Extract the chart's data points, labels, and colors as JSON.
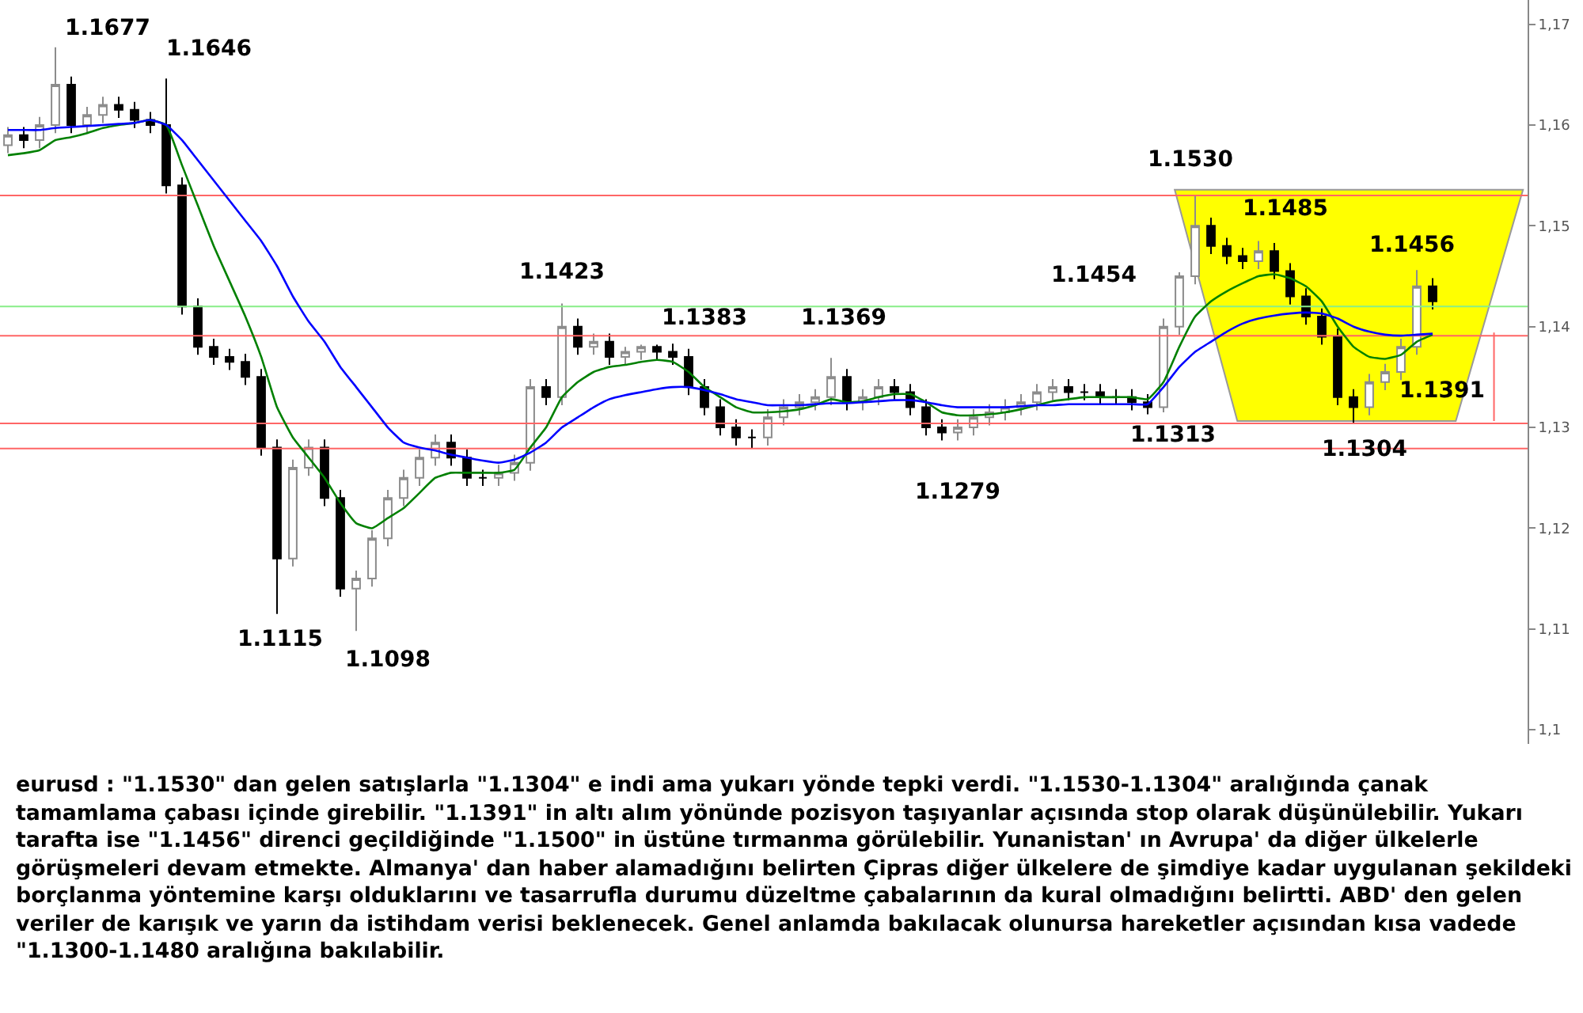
{
  "chart_data": {
    "type": "candlestick",
    "categories": [
      null,
      null,
      null,
      null,
      null,
      null,
      null,
      null,
      null,
      null,
      null,
      null,
      null,
      null,
      null,
      null,
      null,
      null,
      null,
      null,
      null,
      null,
      null,
      null,
      null,
      null,
      null,
      null,
      null,
      null,
      null,
      null,
      null,
      null,
      null,
      null,
      null,
      null,
      null,
      null,
      null,
      null,
      null,
      null,
      null,
      null,
      null,
      null,
      null,
      null,
      null,
      null,
      null,
      null,
      null,
      null,
      null,
      null,
      null,
      null,
      null,
      null,
      null,
      null,
      null,
      null,
      null,
      null,
      null,
      null,
      null,
      null,
      null,
      null,
      null,
      null,
      null,
      null,
      null,
      null,
      null,
      null,
      null,
      null,
      null,
      null,
      null,
      null,
      null,
      null,
      null
    ],
    "ohlc": [
      [
        1.158,
        1.1598,
        1.1572,
        1.159
      ],
      [
        1.159,
        1.1598,
        1.1577,
        1.1585
      ],
      [
        1.1585,
        1.1608,
        1.1577,
        1.16
      ],
      [
        1.16,
        1.1677,
        1.1592,
        1.164
      ],
      [
        1.164,
        1.1648,
        1.1592,
        1.16
      ],
      [
        1.16,
        1.1618,
        1.1592,
        1.161
      ],
      [
        1.161,
        1.1628,
        1.1602,
        1.162
      ],
      [
        1.162,
        1.1628,
        1.1607,
        1.1615
      ],
      [
        1.1615,
        1.1623,
        1.1597,
        1.1605
      ],
      [
        1.1605,
        1.1613,
        1.1592,
        1.16
      ],
      [
        1.16,
        1.1646,
        1.1532,
        1.154
      ],
      [
        1.154,
        1.1548,
        1.1412,
        1.142
      ],
      [
        1.142,
        1.1428,
        1.1372,
        1.138
      ],
      [
        1.138,
        1.1388,
        1.1362,
        1.137
      ],
      [
        1.137,
        1.1378,
        1.1357,
        1.1365
      ],
      [
        1.1365,
        1.1373,
        1.1342,
        1.135
      ],
      [
        1.135,
        1.1358,
        1.1272,
        1.128
      ],
      [
        1.128,
        1.1288,
        1.1115,
        1.117
      ],
      [
        1.117,
        1.1268,
        1.1162,
        1.126
      ],
      [
        1.126,
        1.1288,
        1.1252,
        1.128
      ],
      [
        1.128,
        1.1288,
        1.1222,
        1.123
      ],
      [
        1.123,
        1.1238,
        1.1132,
        1.114
      ],
      [
        1.114,
        1.1158,
        1.1098,
        1.115
      ],
      [
        1.115,
        1.1198,
        1.1142,
        1.119
      ],
      [
        1.119,
        1.1238,
        1.1182,
        1.123
      ],
      [
        1.123,
        1.1258,
        1.1222,
        1.125
      ],
      [
        1.125,
        1.1278,
        1.1242,
        1.127
      ],
      [
        1.127,
        1.1293,
        1.1262,
        1.1285
      ],
      [
        1.1285,
        1.1293,
        1.1262,
        1.127
      ],
      [
        1.127,
        1.1278,
        1.1242,
        1.125
      ],
      [
        1.125,
        1.1258,
        1.1242,
        1.125
      ],
      [
        1.125,
        1.1263,
        1.1242,
        1.1255
      ],
      [
        1.1255,
        1.1273,
        1.1247,
        1.1265
      ],
      [
        1.1265,
        1.1348,
        1.1257,
        1.134
      ],
      [
        1.134,
        1.1348,
        1.1322,
        1.133
      ],
      [
        1.133,
        1.1423,
        1.1322,
        1.14
      ],
      [
        1.14,
        1.1408,
        1.1372,
        1.138
      ],
      [
        1.138,
        1.1393,
        1.1372,
        1.1385
      ],
      [
        1.1385,
        1.1393,
        1.1362,
        1.137
      ],
      [
        1.137,
        1.138,
        1.1362,
        1.1375
      ],
      [
        1.1375,
        1.1382,
        1.1367,
        1.138
      ],
      [
        1.138,
        1.1382,
        1.1367,
        1.1375
      ],
      [
        1.1375,
        1.1383,
        1.1362,
        1.137
      ],
      [
        1.137,
        1.1378,
        1.1332,
        1.134
      ],
      [
        1.134,
        1.1348,
        1.1312,
        1.132
      ],
      [
        1.132,
        1.1328,
        1.1292,
        1.13
      ],
      [
        1.13,
        1.1308,
        1.1282,
        1.129
      ],
      [
        1.129,
        1.1298,
        1.1279,
        1.129
      ],
      [
        1.129,
        1.1318,
        1.1282,
        1.131
      ],
      [
        1.131,
        1.1328,
        1.1302,
        1.132
      ],
      [
        1.132,
        1.1333,
        1.1312,
        1.1325
      ],
      [
        1.1325,
        1.1338,
        1.1317,
        1.133
      ],
      [
        1.133,
        1.1369,
        1.1322,
        1.135
      ],
      [
        1.135,
        1.1358,
        1.1317,
        1.1325
      ],
      [
        1.1325,
        1.1338,
        1.1317,
        1.133
      ],
      [
        1.133,
        1.1348,
        1.1322,
        1.134
      ],
      [
        1.134,
        1.1348,
        1.1327,
        1.1335
      ],
      [
        1.1335,
        1.1343,
        1.1312,
        1.132
      ],
      [
        1.132,
        1.1328,
        1.1292,
        1.13
      ],
      [
        1.13,
        1.1308,
        1.1287,
        1.1295
      ],
      [
        1.1295,
        1.1308,
        1.1287,
        1.13
      ],
      [
        1.13,
        1.1318,
        1.1292,
        1.131
      ],
      [
        1.131,
        1.1323,
        1.1302,
        1.1315
      ],
      [
        1.1315,
        1.1328,
        1.1307,
        1.132
      ],
      [
        1.132,
        1.1333,
        1.1312,
        1.1325
      ],
      [
        1.1325,
        1.1343,
        1.1317,
        1.1335
      ],
      [
        1.1335,
        1.1348,
        1.1327,
        1.134
      ],
      [
        1.134,
        1.1348,
        1.1327,
        1.1335
      ],
      [
        1.1335,
        1.1343,
        1.1327,
        1.1335
      ],
      [
        1.1335,
        1.1343,
        1.1322,
        1.133
      ],
      [
        1.133,
        1.1338,
        1.1322,
        1.133
      ],
      [
        1.133,
        1.1338,
        1.1317,
        1.1325
      ],
      [
        1.1325,
        1.1333,
        1.1313,
        1.132
      ],
      [
        1.132,
        1.1408,
        1.1315,
        1.14
      ],
      [
        1.14,
        1.1454,
        1.1392,
        1.145
      ],
      [
        1.145,
        1.153,
        1.1442,
        1.15
      ],
      [
        1.15,
        1.1508,
        1.1472,
        1.148
      ],
      [
        1.148,
        1.1488,
        1.1462,
        1.147
      ],
      [
        1.147,
        1.1478,
        1.1457,
        1.1465
      ],
      [
        1.1465,
        1.1485,
        1.1457,
        1.1475
      ],
      [
        1.1475,
        1.1483,
        1.1447,
        1.1455
      ],
      [
        1.1455,
        1.1463,
        1.1422,
        1.143
      ],
      [
        1.143,
        1.1438,
        1.1402,
        1.141
      ],
      [
        1.141,
        1.1418,
        1.1382,
        1.139
      ],
      [
        1.139,
        1.1398,
        1.1322,
        1.133
      ],
      [
        1.133,
        1.1338,
        1.1304,
        1.132
      ],
      [
        1.132,
        1.1353,
        1.1312,
        1.1345
      ],
      [
        1.1345,
        1.1363,
        1.1337,
        1.1355
      ],
      [
        1.1355,
        1.1388,
        1.1347,
        1.138
      ],
      [
        1.138,
        1.1456,
        1.1372,
        1.144
      ],
      [
        1.144,
        1.1448,
        1.1417,
        1.1425
      ]
    ],
    "series": [
      {
        "type": "line",
        "color": "#008000",
        "values": [
          1.157,
          1.1572,
          1.1575,
          1.1585,
          1.1588,
          1.1592,
          1.1597,
          1.16,
          1.1602,
          1.1605,
          1.16,
          1.156,
          1.152,
          1.148,
          1.1445,
          1.141,
          1.137,
          1.132,
          1.129,
          1.127,
          1.125,
          1.1225,
          1.1205,
          1.12,
          1.121,
          1.122,
          1.1235,
          1.125,
          1.1255,
          1.1255,
          1.1255,
          1.1255,
          1.1258,
          1.128,
          1.13,
          1.133,
          1.1345,
          1.1355,
          1.136,
          1.1362,
          1.1365,
          1.1367,
          1.1365,
          1.1355,
          1.134,
          1.133,
          1.132,
          1.1315,
          1.1315,
          1.1316,
          1.1318,
          1.1322,
          1.1328,
          1.1325,
          1.1326,
          1.133,
          1.1333,
          1.1333,
          1.1325,
          1.1315,
          1.1312,
          1.1312,
          1.1313,
          1.1315,
          1.1318,
          1.1322,
          1.1326,
          1.1328,
          1.133,
          1.133,
          1.133,
          1.133,
          1.1328,
          1.1345,
          1.138,
          1.141,
          1.1425,
          1.1435,
          1.1443,
          1.145,
          1.1452,
          1.1448,
          1.144,
          1.1425,
          1.14,
          1.138,
          1.137,
          1.1368,
          1.1372,
          1.1385,
          1.1392
        ]
      },
      {
        "type": "line",
        "color": "#0000ff",
        "values": [
          1.1595,
          1.1595,
          1.1595,
          1.1597,
          1.1598,
          1.1599,
          1.16,
          1.1601,
          1.1602,
          1.1605,
          1.16,
          1.1585,
          1.1565,
          1.1545,
          1.1525,
          1.1505,
          1.1485,
          1.146,
          1.143,
          1.1405,
          1.1385,
          1.136,
          1.134,
          1.132,
          1.13,
          1.1285,
          1.128,
          1.1277,
          1.1273,
          1.127,
          1.1267,
          1.1265,
          1.1268,
          1.1275,
          1.1285,
          1.13,
          1.131,
          1.132,
          1.1328,
          1.1332,
          1.1335,
          1.1338,
          1.134,
          1.134,
          1.1337,
          1.1333,
          1.1328,
          1.1325,
          1.1322,
          1.1322,
          1.1322,
          1.1323,
          1.1324,
          1.1324,
          1.1325,
          1.1326,
          1.1327,
          1.1327,
          1.1325,
          1.1322,
          1.132,
          1.132,
          1.132,
          1.132,
          1.1321,
          1.1322,
          1.1322,
          1.1323,
          1.1323,
          1.1323,
          1.1323,
          1.1323,
          1.1323,
          1.134,
          1.136,
          1.1375,
          1.1385,
          1.1395,
          1.1403,
          1.1408,
          1.1411,
          1.1413,
          1.1414,
          1.1413,
          1.1408,
          1.14,
          1.1395,
          1.1392,
          1.1391,
          1.1392,
          1.1393
        ]
      }
    ],
    "ylim": [
      1.0986,
      1.1724
    ],
    "yticks": [
      {
        "value": 1.1,
        "label": "1,1"
      },
      {
        "value": 1.11,
        "label": "1,11"
      },
      {
        "value": 1.12,
        "label": "1,12"
      },
      {
        "value": 1.13,
        "label": "1,13"
      },
      {
        "value": 1.14,
        "label": "1,14"
      },
      {
        "value": 1.15,
        "label": "1,15"
      },
      {
        "value": 1.16,
        "label": "1,16"
      },
      {
        "value": 1.17,
        "label": "1,17"
      }
    ],
    "tick_labels": "y",
    "ref_lines": [
      {
        "axis": "y",
        "value": 1.153,
        "color": "#ff6666"
      },
      {
        "axis": "y",
        "value": 1.1391,
        "label": "1.1391",
        "color": "#ff6666"
      },
      {
        "axis": "y",
        "value": 1.1304,
        "color": "#ff6666"
      },
      {
        "axis": "y",
        "value": 1.1279,
        "color": "#ff6666"
      },
      {
        "axis": "y",
        "value": 1.142,
        "color": "#88ee88"
      }
    ],
    "annotations": [
      "1.1677",
      "1.1646",
      "1.1115",
      "1.1098",
      "1.1423",
      "1.1383",
      "1.1369",
      "1.1279",
      "1.1454",
      "1.1313",
      "1.1530",
      "1.1485",
      "1.1304",
      "1.1456",
      " eurusd : \"1.1530\" dan gelen satışlarla \"1.1304\" e indi ama yukarı yönde tepki verdi. \"1.1530-1.1304\" aralığında çanak tamamlama çabası içinde girebilir. \"1.1391\" in altı alım yönünde pozisyon taşıyanlar açısında stop olarak düşünülebilir. Yukarı tarafta ise \"1.1456\" direnci geçildiğinde \"1.1500\" in üstüne tırmanma görülebilir. Yunanistan' ın Avrupa' da diğer ülkelerle görüşmeleri devam etmekte. Almanya' dan haber alamadığını belirten Çipras diğer ülkelere de şimdiye kadar uygulanan şekildeki borçlanma yöntemine karşı olduklarını ve tasarrufla durumu düzeltme çabalarının da kural olmadığını belirtti. ABD' den gelen veriler de karışık ve yarın da istihdam verisi beklenecek. Genel anlamda bakılacak olunursa hareketler açısından kısa vadede \"1.1300-1.1480 aralığına bakılabilir."
    ]
  }
}
